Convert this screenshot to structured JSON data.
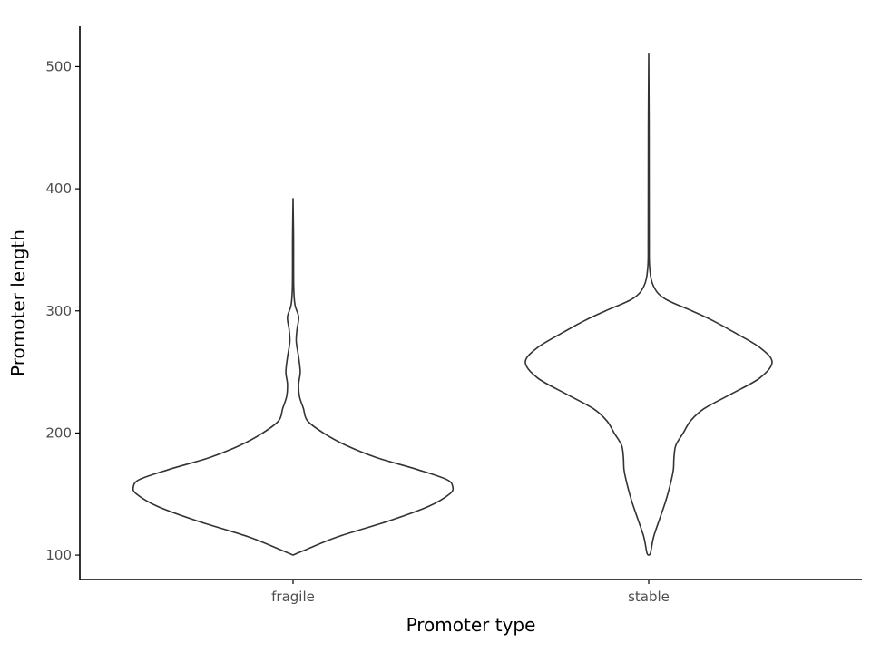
{
  "chart_data": {
    "type": "violin",
    "title": "",
    "xlabel": "Promoter type",
    "ylabel": "Promoter length",
    "categories": [
      "fragile",
      "stable"
    ],
    "y_ticks": [
      100,
      200,
      300,
      400,
      500
    ],
    "y_tick_labels": [
      "100",
      "200",
      "300",
      "400",
      "500"
    ],
    "ylim": [
      80,
      533
    ],
    "grid": false,
    "line_color": "#333333",
    "violins": [
      {
        "category": "fragile",
        "density_profile": [
          {
            "y": 100,
            "w": 0.0
          },
          {
            "y": 105,
            "w": 0.09
          },
          {
            "y": 115,
            "w": 0.28
          },
          {
            "y": 128,
            "w": 0.6
          },
          {
            "y": 140,
            "w": 0.85
          },
          {
            "y": 150,
            "w": 0.98
          },
          {
            "y": 156,
            "w": 1.0
          },
          {
            "y": 162,
            "w": 0.96
          },
          {
            "y": 170,
            "w": 0.78
          },
          {
            "y": 180,
            "w": 0.52
          },
          {
            "y": 190,
            "w": 0.33
          },
          {
            "y": 200,
            "w": 0.19
          },
          {
            "y": 210,
            "w": 0.09
          },
          {
            "y": 220,
            "w": 0.065
          },
          {
            "y": 230,
            "w": 0.04
          },
          {
            "y": 240,
            "w": 0.035
          },
          {
            "y": 250,
            "w": 0.045
          },
          {
            "y": 262,
            "w": 0.035
          },
          {
            "y": 275,
            "w": 0.02
          },
          {
            "y": 285,
            "w": 0.025
          },
          {
            "y": 295,
            "w": 0.035
          },
          {
            "y": 305,
            "w": 0.012
          },
          {
            "y": 320,
            "w": 0.004
          },
          {
            "y": 360,
            "w": 0.003
          },
          {
            "y": 392,
            "w": 0.0
          }
        ]
      },
      {
        "category": "stable",
        "density_profile": [
          {
            "y": 100,
            "w": 0.0
          },
          {
            "y": 102,
            "w": 0.015
          },
          {
            "y": 115,
            "w": 0.04
          },
          {
            "y": 130,
            "w": 0.09
          },
          {
            "y": 145,
            "w": 0.14
          },
          {
            "y": 160,
            "w": 0.18
          },
          {
            "y": 170,
            "w": 0.2
          },
          {
            "y": 180,
            "w": 0.205
          },
          {
            "y": 190,
            "w": 0.22
          },
          {
            "y": 200,
            "w": 0.28
          },
          {
            "y": 210,
            "w": 0.34
          },
          {
            "y": 220,
            "w": 0.45
          },
          {
            "y": 232,
            "w": 0.67
          },
          {
            "y": 245,
            "w": 0.9
          },
          {
            "y": 258,
            "w": 1.0
          },
          {
            "y": 270,
            "w": 0.9
          },
          {
            "y": 282,
            "w": 0.7
          },
          {
            "y": 292,
            "w": 0.52
          },
          {
            "y": 300,
            "w": 0.35
          },
          {
            "y": 310,
            "w": 0.13
          },
          {
            "y": 320,
            "w": 0.04
          },
          {
            "y": 335,
            "w": 0.008
          },
          {
            "y": 360,
            "w": 0.004
          },
          {
            "y": 450,
            "w": 0.003
          },
          {
            "y": 511,
            "w": 0.0
          }
        ]
      }
    ]
  }
}
